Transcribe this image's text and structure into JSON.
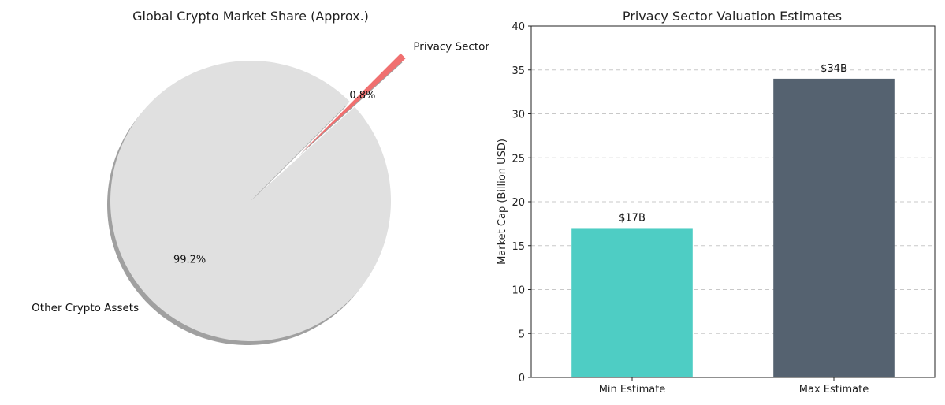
{
  "chart_data": [
    {
      "type": "pie",
      "title": "Global Crypto Market Share (Approx.)",
      "slices": [
        {
          "label": "Other Crypto Assets",
          "value": 99.2,
          "pct_label": "99.2%",
          "color": "#e0e0e0"
        },
        {
          "label": "Privacy Sector",
          "value": 0.8,
          "pct_label": "0.8%",
          "color": "#f07070"
        }
      ],
      "shadow": true,
      "exploded": "Privacy Sector"
    },
    {
      "type": "bar",
      "title": "Privacy Sector Valuation Estimates",
      "categories": [
        "Min Estimate",
        "Max Estimate"
      ],
      "values": [
        17,
        34
      ],
      "data_labels": [
        "$17B",
        "$34B"
      ],
      "colors": [
        "#4ecdc4",
        "#556270"
      ],
      "ylabel": "Market Cap (Billion USD)",
      "xlabel": "",
      "ylim": [
        0,
        40
      ],
      "yticks": [
        "0",
        "5",
        "10",
        "15",
        "20",
        "25",
        "30",
        "35",
        "40"
      ],
      "grid": "y-dashed"
    }
  ]
}
